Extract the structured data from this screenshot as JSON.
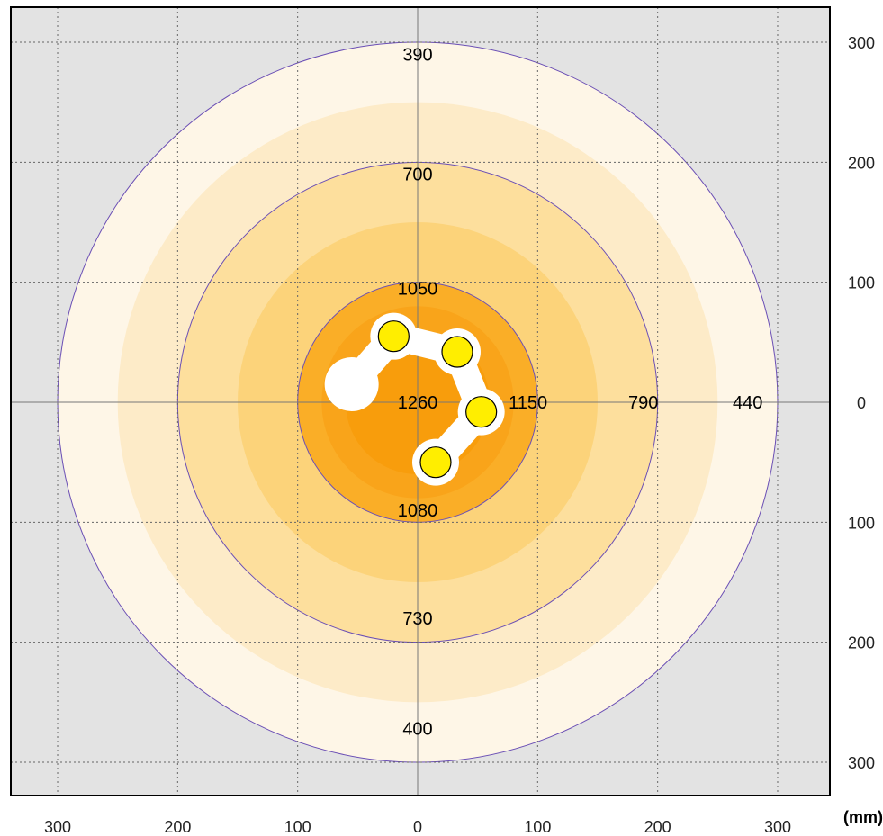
{
  "chart_data": {
    "type": "heatmap",
    "unit": "(mm)",
    "xlim": [
      -320,
      320
    ],
    "ylim": [
      -320,
      320
    ],
    "grid": true,
    "x_ticks": [
      {
        "value": -300,
        "label": "300"
      },
      {
        "value": -200,
        "label": "200"
      },
      {
        "value": -100,
        "label": "100"
      },
      {
        "value": 0,
        "label": "0"
      },
      {
        "value": 100,
        "label": "100"
      },
      {
        "value": 200,
        "label": "200"
      },
      {
        "value": 300,
        "label": "300"
      }
    ],
    "y_ticks": [
      {
        "value": 300,
        "label": "300"
      },
      {
        "value": 200,
        "label": "200"
      },
      {
        "value": 100,
        "label": "100"
      },
      {
        "value": 0,
        "label": "0"
      },
      {
        "value": -100,
        "label": "100"
      },
      {
        "value": -200,
        "label": "200"
      },
      {
        "value": -300,
        "label": "300"
      }
    ],
    "bands": [
      {
        "radius": 300,
        "color": "#FEF6E7"
      },
      {
        "radius": 250,
        "color": "#FDEBC8"
      },
      {
        "radius": 200,
        "color": "#FDDF9D"
      },
      {
        "radius": 150,
        "color": "#FCD37A"
      },
      {
        "radius": 100,
        "color": "#FAAE27"
      },
      {
        "radius": 80,
        "color": "#F9A41A"
      },
      {
        "radius": 60,
        "color": "#F89D0C"
      }
    ],
    "contours": [
      {
        "radius": 300,
        "color": "#6B4FB5"
      },
      {
        "radius": 200,
        "color": "#6B4FB5"
      },
      {
        "radius": 100,
        "color": "#6B4FB5"
      }
    ],
    "values": [
      {
        "label": "390",
        "x": 0,
        "y": 290
      },
      {
        "label": "700",
        "x": 0,
        "y": 190
      },
      {
        "label": "1050",
        "x": 0,
        "y": 95
      },
      {
        "label": "1260",
        "x": 0,
        "y": 0
      },
      {
        "label": "1150",
        "x": 92,
        "y": 0
      },
      {
        "label": "790",
        "x": 188,
        "y": 0
      },
      {
        "label": "440",
        "x": 275,
        "y": 0
      },
      {
        "label": "1080",
        "x": 0,
        "y": -90
      },
      {
        "label": "730",
        "x": 0,
        "y": -180
      },
      {
        "label": "400",
        "x": 0,
        "y": -272
      }
    ],
    "fixture": {
      "path": [
        [
          -55,
          15
        ],
        [
          -20,
          55
        ],
        [
          33,
          42
        ],
        [
          53,
          -8
        ],
        [
          15,
          -50
        ]
      ],
      "lamps": [
        [
          -20,
          55
        ],
        [
          33,
          42
        ],
        [
          53,
          -8
        ],
        [
          15,
          -50
        ]
      ],
      "lamp_color": "#FFEE00",
      "body_color": "#FFFFFF"
    }
  }
}
